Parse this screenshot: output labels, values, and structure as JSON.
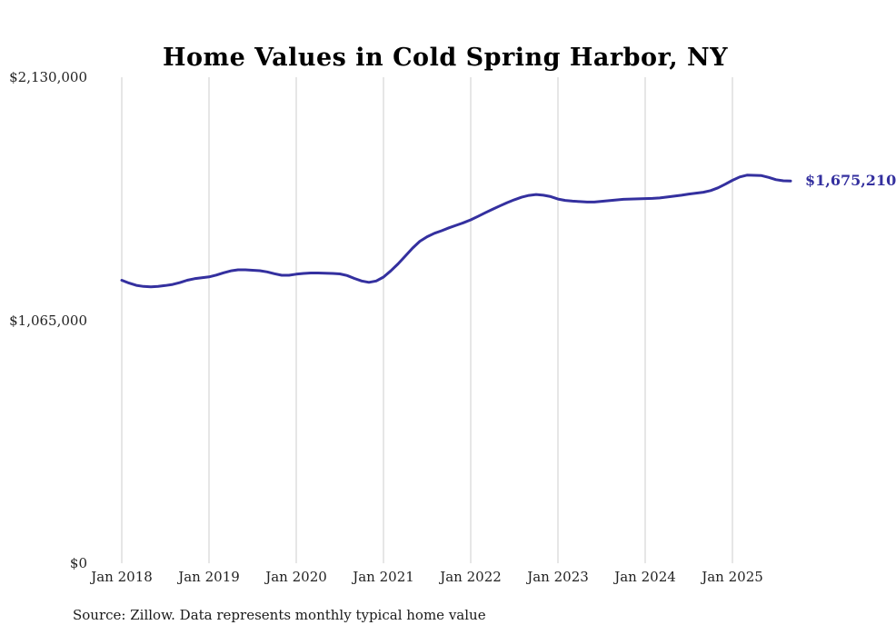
{
  "title": "Home Values in Cold Spring Harbor, NY",
  "source_note": "Source: Zillow. Data represents monthly typical home value",
  "colors": {
    "line": "#34309f",
    "grid": "#cccccc",
    "axis_text": "#222222",
    "title_text": "#000000"
  },
  "chart_data": {
    "type": "line",
    "title": "Home Values in Cold Spring Harbor, NY",
    "xlabel": "",
    "ylabel": "",
    "ylim": [
      0,
      2130000
    ],
    "grid": "vertical-only",
    "legend_position": "none",
    "y_ticks": [
      {
        "value": 2130000,
        "label": "$2,130,000"
      },
      {
        "value": 1065000,
        "label": "$1,065,000"
      },
      {
        "value": 0,
        "label": "$0"
      }
    ],
    "x_ticks": [
      "Jan 2018",
      "Jan 2019",
      "Jan 2020",
      "Jan 2021",
      "Jan 2022",
      "Jan 2023",
      "Jan 2024",
      "Jan 2025"
    ],
    "x_start_month": "Jan 2018",
    "months_per_tick": 12,
    "final_value": 1675210,
    "final_value_label": "$1,675,210",
    "series": [
      {
        "name": "Typical home value",
        "values": [
          1240000,
          1228000,
          1218000,
          1213000,
          1211000,
          1213000,
          1217000,
          1222000,
          1230000,
          1240000,
          1247000,
          1251000,
          1255000,
          1263000,
          1273000,
          1281000,
          1286000,
          1286000,
          1284000,
          1282000,
          1277000,
          1269000,
          1262000,
          1262000,
          1267000,
          1270000,
          1272000,
          1272000,
          1271000,
          1270000,
          1268000,
          1261000,
          1248000,
          1237000,
          1231000,
          1237000,
          1254000,
          1281000,
          1312000,
          1346000,
          1381000,
          1411000,
          1431000,
          1446000,
          1457000,
          1470000,
          1481000,
          1492000,
          1505000,
          1520000,
          1536000,
          1551000,
          1566000,
          1580000,
          1593000,
          1604000,
          1612000,
          1616000,
          1613000,
          1607000,
          1596000,
          1590000,
          1587000,
          1585000,
          1583000,
          1583000,
          1586000,
          1589000,
          1592000,
          1595000,
          1596000,
          1597000,
          1598000,
          1599000,
          1601000,
          1605000,
          1609000,
          1613000,
          1618000,
          1622000,
          1626000,
          1633000,
          1645000,
          1661000,
          1678000,
          1693000,
          1701000,
          1700000,
          1699000,
          1691000,
          1681000,
          1676000,
          1675210
        ]
      }
    ]
  }
}
